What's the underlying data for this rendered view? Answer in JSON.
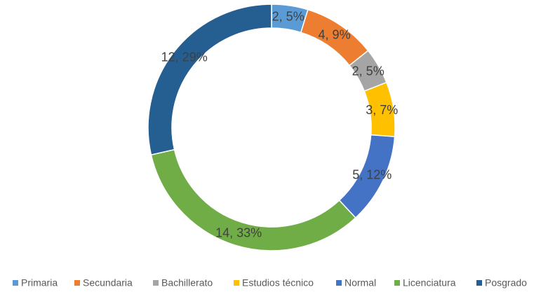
{
  "chart_data": {
    "type": "pie",
    "categories": [
      "Primaria",
      "Secundaria",
      "Bachillerato",
      "Estudios técnico",
      "Normal",
      "Licenciatura",
      "Posgrado"
    ],
    "values": [
      2,
      4,
      2,
      3,
      5,
      14,
      12
    ],
    "value_labels": [
      "2, 5%",
      "4, 9%",
      "2, 5%",
      "3, 7%",
      "5, 12%",
      "14, 33%",
      "12, 29%"
    ],
    "colors": [
      "#5b9bd5",
      "#ed7d31",
      "#a5a5a5",
      "#ffc000",
      "#4472c4",
      "#70ad47",
      "#255e91"
    ],
    "legend": "bottom"
  }
}
